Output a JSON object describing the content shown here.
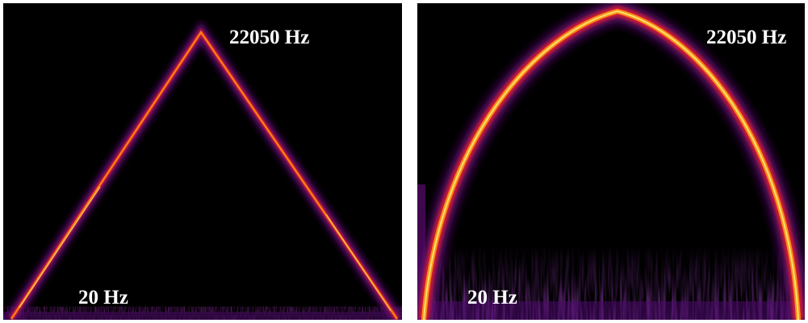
{
  "spectrograms": [
    {
      "sweep": "linear",
      "top_label": "22050 Hz",
      "bottom_label": "20 Hz"
    },
    {
      "sweep": "logarithmic",
      "top_label": "22050 Hz",
      "bottom_label": "20 Hz"
    }
  ],
  "colors": {
    "background": "#000000",
    "low": "#5a0a6e",
    "mid": "#c8143c",
    "high": "#ff7a10",
    "peak": "#f6f27a",
    "label": "#ffffff"
  }
}
